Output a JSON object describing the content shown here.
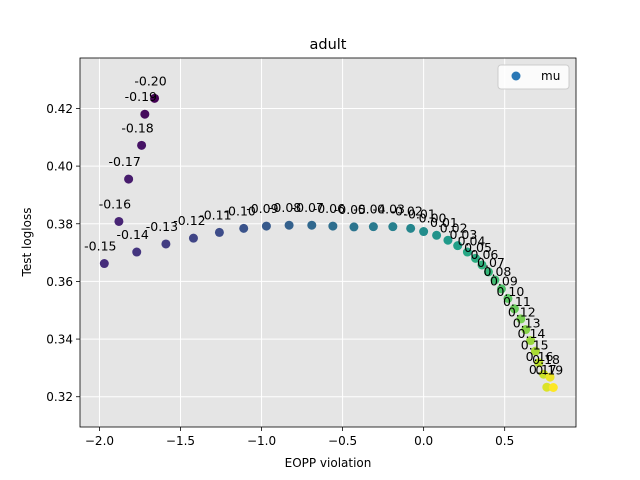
{
  "chart_data": {
    "type": "scatter",
    "title": "adult",
    "xlabel": "EOPP violation",
    "ylabel": "Test logloss",
    "xlim": [
      -2.12,
      0.94
    ],
    "ylim": [
      0.3095,
      0.4375
    ],
    "xticks": [
      -2.0,
      -1.5,
      -1.0,
      -0.5,
      0.0,
      0.5
    ],
    "xtick_labels": [
      "−2.0",
      "−1.5",
      "−1.0",
      "−0.5",
      "0.0",
      "0.5"
    ],
    "yticks": [
      0.32,
      0.34,
      0.36,
      0.38,
      0.4,
      0.42
    ],
    "ytick_labels": [
      "0.32",
      "0.34",
      "0.36",
      "0.38",
      "0.40",
      "0.42"
    ],
    "grid": true,
    "legend": {
      "position": "upper-right",
      "entries": [
        "mu"
      ]
    },
    "colormap": "viridis",
    "background": "#e5e5e5",
    "points": [
      {
        "label": "-0.20",
        "x": -1.66,
        "y": 0.4235
      },
      {
        "label": "-0.19",
        "x": -1.72,
        "y": 0.418
      },
      {
        "label": "-0.18",
        "x": -1.74,
        "y": 0.4072
      },
      {
        "label": "-0.17",
        "x": -1.82,
        "y": 0.3955
      },
      {
        "label": "-0.16",
        "x": -1.88,
        "y": 0.3808
      },
      {
        "label": "-0.15",
        "x": -1.97,
        "y": 0.3662
      },
      {
        "label": "-0.14",
        "x": -1.77,
        "y": 0.3702
      },
      {
        "label": "-0.13",
        "x": -1.59,
        "y": 0.373
      },
      {
        "label": "-0.12",
        "x": -1.42,
        "y": 0.375
      },
      {
        "label": "-0.11",
        "x": -1.26,
        "y": 0.377
      },
      {
        "label": "-0.10",
        "x": -1.11,
        "y": 0.3784
      },
      {
        "label": "-0.09",
        "x": -0.97,
        "y": 0.3792
      },
      {
        "label": "-0.08",
        "x": -0.83,
        "y": 0.3795
      },
      {
        "label": "-0.07",
        "x": -0.69,
        "y": 0.3795
      },
      {
        "label": "-0.06",
        "x": -0.56,
        "y": 0.3792
      },
      {
        "label": "-0.05",
        "x": -0.43,
        "y": 0.3789
      },
      {
        "label": "-0.04",
        "x": -0.31,
        "y": 0.379
      },
      {
        "label": "-0.03",
        "x": -0.19,
        "y": 0.379
      },
      {
        "label": "-0.02",
        "x": -0.08,
        "y": 0.3784
      },
      {
        "label": "-0.01",
        "x": 0.0,
        "y": 0.3773
      },
      {
        "label": "0.00",
        "x": 0.08,
        "y": 0.376
      },
      {
        "label": "0.01",
        "x": 0.15,
        "y": 0.3743
      },
      {
        "label": "0.02",
        "x": 0.21,
        "y": 0.3724
      },
      {
        "label": "0.03",
        "x": 0.27,
        "y": 0.3702
      },
      {
        "label": "0.04",
        "x": 0.32,
        "y": 0.368
      },
      {
        "label": "0.05",
        "x": 0.36,
        "y": 0.3657
      },
      {
        "label": "0.06",
        "x": 0.4,
        "y": 0.3633
      },
      {
        "label": "0.07",
        "x": 0.44,
        "y": 0.3605
      },
      {
        "label": "0.08",
        "x": 0.48,
        "y": 0.3574
      },
      {
        "label": "0.09",
        "x": 0.52,
        "y": 0.3541
      },
      {
        "label": "0.10",
        "x": 0.56,
        "y": 0.3505
      },
      {
        "label": "0.11",
        "x": 0.6,
        "y": 0.347
      },
      {
        "label": "0.12",
        "x": 0.63,
        "y": 0.3433
      },
      {
        "label": "0.13",
        "x": 0.66,
        "y": 0.3395
      },
      {
        "label": "0.14",
        "x": 0.69,
        "y": 0.3358
      },
      {
        "label": "0.15",
        "x": 0.71,
        "y": 0.3318
      },
      {
        "label": "0.16",
        "x": 0.74,
        "y": 0.3278
      },
      {
        "label": "0.17",
        "x": 0.76,
        "y": 0.3233
      },
      {
        "label": "0.18",
        "x": 0.78,
        "y": 0.3268
      },
      {
        "label": "0.19",
        "x": 0.8,
        "y": 0.3232
      }
    ]
  }
}
